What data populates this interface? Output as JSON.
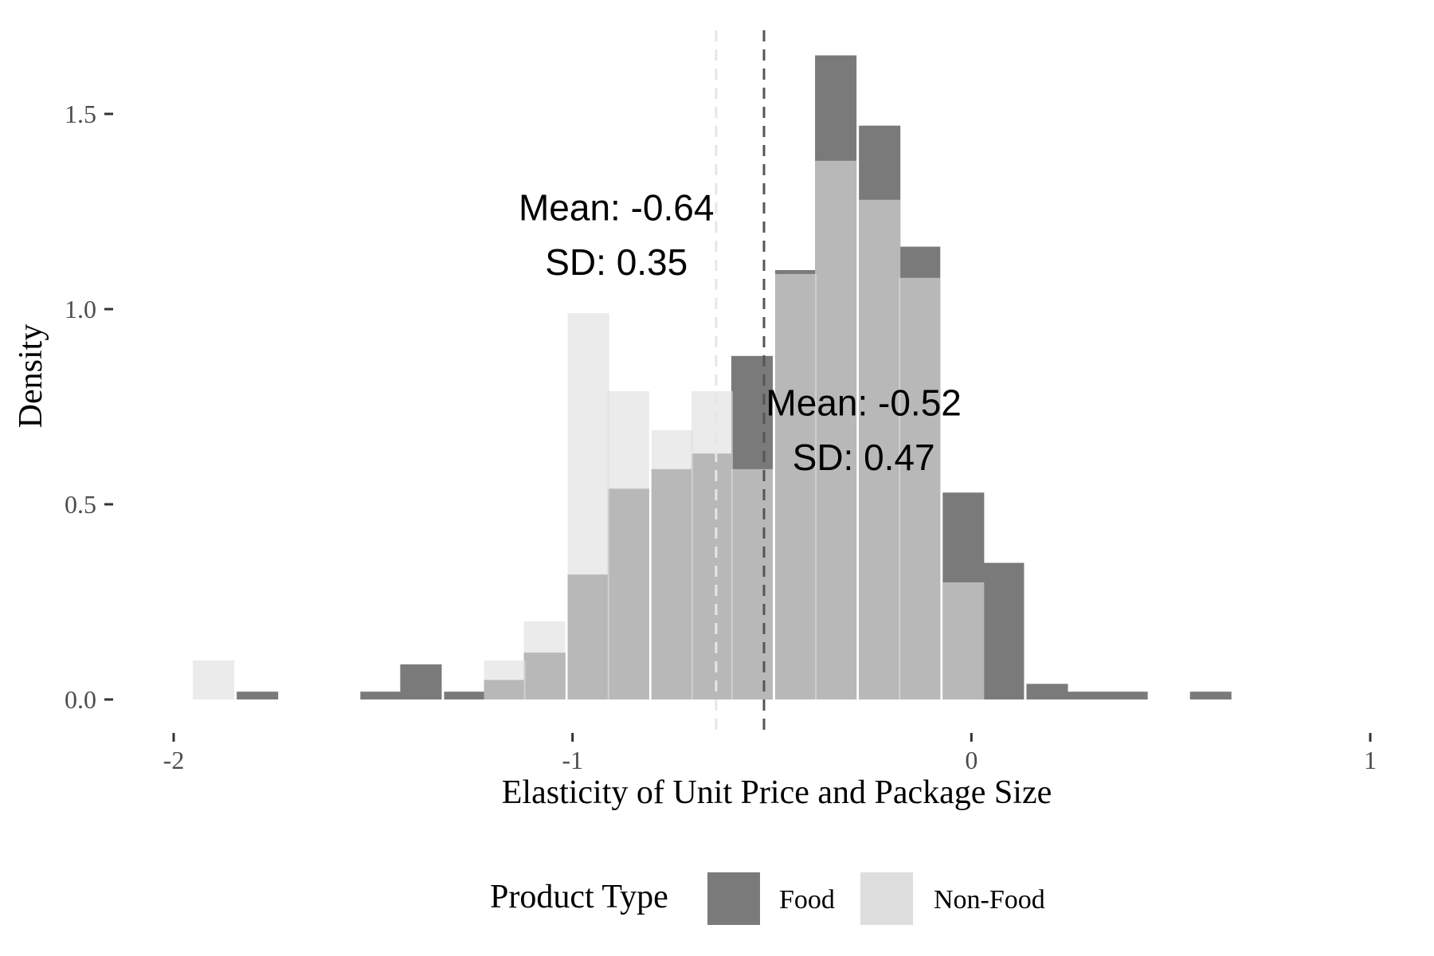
{
  "chart_data": {
    "type": "bar",
    "title": "",
    "xlabel": "Elasticity of Unit Price and Package Size",
    "ylabel": "Density",
    "xlim": [
      -2.0,
      1.0
    ],
    "ylim": [
      0,
      1.7
    ],
    "x_ticks": [
      -2,
      -1,
      0,
      1
    ],
    "x_tick_labels": [
      "-2",
      "-1",
      "0",
      "1"
    ],
    "y_ticks": [
      0,
      0.5,
      1.0,
      1.5
    ],
    "y_tick_labels": [
      "0.0",
      "0.5",
      "1.0",
      "1.5"
    ],
    "bin_width": 0.104,
    "grid": false,
    "legend": {
      "title": "Product Type",
      "position": "bottom",
      "entries": [
        "Food",
        "Non-Food"
      ]
    },
    "series": [
      {
        "name": "Food",
        "color": "#7a7a7a",
        "x": [
          -1.79,
          -1.48,
          -1.38,
          -1.27,
          -1.17,
          -1.07,
          -0.96,
          -0.86,
          -0.75,
          -0.65,
          -0.55,
          -0.44,
          -0.34,
          -0.23,
          -0.13,
          -0.02,
          0.08,
          0.19,
          0.29,
          0.39,
          0.6
        ],
        "values": [
          0.02,
          0.02,
          0.09,
          0.02,
          0.05,
          0.12,
          0.32,
          0.54,
          0.59,
          0.63,
          0.88,
          1.1,
          1.65,
          1.47,
          1.16,
          0.53,
          0.35,
          0.04,
          0.02,
          0.02,
          0.02
        ]
      },
      {
        "name": "Non-Food",
        "color": "#dedede",
        "x": [
          -1.9,
          -1.17,
          -1.07,
          -0.96,
          -0.86,
          -0.75,
          -0.65,
          -0.55,
          -0.44,
          -0.34,
          -0.23,
          -0.13,
          -0.02
        ],
        "values": [
          0.1,
          0.1,
          0.2,
          0.99,
          0.79,
          0.69,
          0.79,
          0.59,
          1.09,
          1.38,
          1.28,
          1.08,
          0.3
        ]
      }
    ],
    "vlines": [
      {
        "series": "Non-Food",
        "x": -0.64,
        "color": "#e6e6e6"
      },
      {
        "series": "Food",
        "x": -0.52,
        "color": "#555555"
      }
    ],
    "annotations": [
      {
        "series": "Non-Food",
        "x": -0.89,
        "y_mean": 1.26,
        "y_sd": 1.12,
        "mean_text": "Mean: -0.64",
        "sd_text": "SD: 0.35"
      },
      {
        "series": "Food",
        "x": -0.27,
        "y_mean": 0.76,
        "y_sd": 0.62,
        "mean_text": "Mean: -0.52",
        "sd_text": "SD: 0.47"
      }
    ]
  }
}
